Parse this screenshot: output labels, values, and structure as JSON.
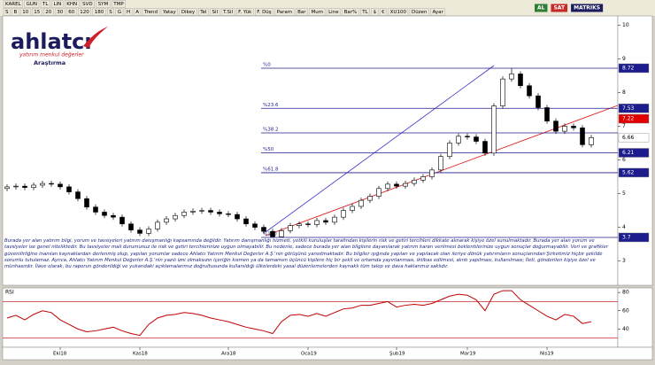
{
  "toolbar": {
    "row1": [
      "KAREL",
      "GUN",
      "TL",
      "LIN",
      "KHN",
      "SVD",
      "SYM",
      "TMP"
    ],
    "row2": [
      "S",
      "B",
      "10",
      "15",
      "20",
      "30",
      "60",
      "120",
      "180",
      "S",
      "G",
      "H",
      "A",
      "Trend",
      "Yatay",
      "Dikey",
      "Tel",
      "Sil",
      "T.Sil",
      "F. Yük",
      "F. Düş",
      "Param",
      "Bar",
      "Mum",
      "Line",
      "Bar%",
      "TL",
      "$",
      "€",
      "XU100",
      "Düzen",
      "Ayar"
    ],
    "right": [
      "AL",
      "SAT",
      "MATRIKS"
    ]
  },
  "logo": {
    "name": "ahlatcı",
    "tagline": "yatırım menkul değerler",
    "subtitle": "Araştırma"
  },
  "disclaimer": "Burada yer alan yatırım bilgi, yorum ve tavsiyeleri yatırım danışmanlığı kapsamında değildir. Yatırım danışmanlığı hizmeti, yetkili kuruluşlar tarafından kişilerin risk ve getiri tercihleri dikkate alınarak kişiye özel sunulmaktadır. Burada yer alan yorum ve tavsiyeler ise genel niteliktedir. Bu tavsiyeler mali durumunuz ile risk ve getiri tercihlerinize uygun olmayabilir. Bu nedenle, sadece burada yer alan bilgilere dayanılarak yatırım kararı verilmesi beklentilerinize uygun sonuçlar doğurmayabilir. Veri ve grafikler güvenilirliğine inanılan kaynaklardan derlenmiş olup, yapılan yorumlar sadece Ahlatcı Yatırım Menkul Değerler A.Ş.'nin görüşünü yansıtmaktadır. Bu bilgiler ışığında yapılan ve yapılacak olan ileriye dönük yatırımların sonuçlarından Şirketimiz hiçbir şekilde sorumlu tutulamaz. Ayrıca, Ahlatcı Yatırım Menkul Değerler A.Ş.'nin yazılı izni olmaksızın içeriğin kısmen ya da tamamen üçüncü kişilere hiç bir şekil ve ortamda yayınlanması, iktibas edilmesi, alıntı yapılması, kullanılması; İleti, gönderilen kişiye özel ve münhasırdır. İlave olarak, bu raporun gönderildiği ve yukarıdaki açıklamalarımız doğrultusunda kullanıldığı ülkelerdeki yasal düzenlemelerden kaynaklı tüm talep ve dava haklarımız saklıdır.",
  "chart_data": [
    {
      "type": "candlestick",
      "categories": [
        null,
        null,
        null,
        null,
        null,
        null,
        "Eki18",
        null,
        null,
        null,
        null,
        null,
        null,
        null,
        null,
        "Kas18",
        null,
        null,
        null,
        null,
        null,
        null,
        null,
        null,
        null,
        "Ara18",
        null,
        null,
        null,
        null,
        null,
        null,
        null,
        null,
        "Oca19",
        null,
        null,
        null,
        null,
        null,
        null,
        null,
        null,
        null,
        "Şub19",
        null,
        null,
        null,
        null,
        null,
        null,
        null,
        "Mar19",
        null,
        null,
        null,
        null,
        null,
        null,
        null,
        null,
        "Nis19",
        null,
        null,
        null,
        null,
        null
      ],
      "open": [
        5.15,
        5.2,
        5.22,
        5.18,
        5.25,
        5.3,
        5.28,
        5.2,
        5.05,
        4.85,
        4.6,
        4.45,
        4.35,
        4.3,
        4.1,
        3.92,
        3.82,
        3.95,
        4.15,
        4.25,
        4.35,
        4.45,
        4.48,
        4.5,
        4.45,
        4.4,
        4.38,
        4.25,
        4.1,
        4.0,
        3.88,
        3.72,
        3.9,
        4.05,
        4.1,
        4.08,
        4.2,
        4.15,
        4.3,
        4.5,
        4.62,
        4.8,
        4.92,
        5.15,
        5.28,
        5.22,
        5.3,
        5.4,
        5.5,
        5.7,
        6.1,
        6.5,
        6.7,
        6.68,
        6.55,
        6.2,
        7.6,
        8.4,
        8.55,
        8.2,
        7.9,
        7.55,
        7.15,
        6.85,
        7.0,
        6.95,
        6.45
      ],
      "high": [
        5.28,
        5.3,
        5.3,
        5.33,
        5.38,
        5.38,
        5.36,
        5.28,
        5.13,
        4.93,
        4.68,
        4.53,
        4.43,
        4.38,
        4.18,
        4.0,
        4.03,
        4.23,
        4.33,
        4.43,
        4.53,
        4.56,
        4.58,
        4.58,
        4.53,
        4.48,
        4.46,
        4.33,
        4.18,
        4.08,
        3.96,
        3.98,
        4.13,
        4.18,
        4.18,
        4.28,
        4.28,
        4.38,
        4.58,
        4.7,
        4.88,
        5.0,
        5.23,
        5.36,
        5.36,
        5.38,
        5.48,
        5.58,
        5.78,
        6.18,
        6.58,
        6.78,
        6.78,
        6.76,
        6.63,
        7.68,
        8.48,
        8.72,
        8.63,
        8.28,
        7.98,
        7.63,
        7.23,
        7.08,
        7.08,
        7.03,
        6.74
      ],
      "low": [
        5.07,
        5.12,
        5.1,
        5.1,
        5.17,
        5.2,
        5.12,
        4.97,
        4.77,
        4.52,
        4.37,
        4.27,
        4.22,
        4.02,
        3.84,
        3.74,
        3.74,
        3.87,
        4.07,
        4.17,
        4.27,
        4.37,
        4.4,
        4.37,
        4.32,
        4.3,
        4.17,
        4.02,
        3.92,
        3.8,
        3.7,
        3.74,
        3.82,
        3.97,
        4.0,
        4.0,
        4.07,
        4.07,
        4.22,
        4.42,
        4.54,
        4.72,
        4.84,
        5.07,
        5.14,
        5.14,
        5.22,
        5.32,
        5.42,
        5.62,
        6.02,
        6.42,
        6.6,
        6.47,
        6.12,
        6.12,
        7.52,
        8.32,
        8.12,
        7.82,
        7.47,
        7.07,
        6.77,
        6.77,
        6.87,
        6.37,
        6.37
      ],
      "close": [
        5.2,
        5.22,
        5.18,
        5.25,
        5.3,
        5.28,
        5.2,
        5.05,
        4.85,
        4.6,
        4.45,
        4.35,
        4.3,
        4.1,
        3.92,
        3.82,
        3.95,
        4.15,
        4.25,
        4.35,
        4.45,
        4.48,
        4.5,
        4.45,
        4.4,
        4.38,
        4.25,
        4.1,
        4.0,
        3.88,
        3.72,
        3.9,
        4.05,
        4.1,
        4.08,
        4.2,
        4.15,
        4.3,
        4.5,
        4.62,
        4.8,
        4.92,
        5.15,
        5.28,
        5.22,
        5.3,
        5.4,
        5.5,
        5.7,
        6.1,
        6.5,
        6.7,
        6.68,
        6.55,
        6.2,
        7.6,
        8.4,
        8.55,
        8.2,
        7.9,
        7.55,
        7.15,
        6.85,
        7.0,
        6.95,
        6.45,
        6.66
      ],
      "up_color": "#ffffff",
      "down_color": "#000000",
      "edge_color": "#000000",
      "ylim": [
        2.28,
        10.27
      ],
      "yticks": [
        3,
        4,
        5,
        6,
        7,
        8,
        9,
        10
      ],
      "fib_levels": [
        {
          "label": "%0",
          "value": 8.72
        },
        {
          "label": "%23.6",
          "value": 7.53
        },
        {
          "label": "%38.2",
          "value": 6.8
        },
        {
          "label": "%50",
          "value": 6.21
        },
        {
          "label": "%61.8",
          "value": 5.62
        },
        {
          "label": "%100",
          "value": 3.7
        }
      ],
      "fib_color": "#1c1c8c",
      "price_tags": [
        {
          "value": 8.72,
          "color": "#1c1c8c",
          "text_color": "#ffffff"
        },
        {
          "value": 7.53,
          "color": "#1c1c8c",
          "text_color": "#ffffff"
        },
        {
          "value": 7.22,
          "color": "#e00000",
          "text_color": "#ffffff"
        },
        {
          "value": 6.66,
          "color": "#ffffff",
          "text_color": "#000000"
        },
        {
          "value": 6.21,
          "color": "#1c1c8c",
          "text_color": "#ffffff"
        },
        {
          "value": 5.62,
          "color": "#1c1c8c",
          "text_color": "#ffffff"
        },
        {
          "value": 3.7,
          "color": "#1c1c8c",
          "text_color": "#ffffff"
        }
      ]
    },
    {
      "type": "line",
      "title": "RSI",
      "series": [
        {
          "color": "#c00000",
          "values": [
            52,
            55,
            50,
            56,
            60,
            58,
            50,
            45,
            40,
            37,
            38,
            40,
            42,
            38,
            35,
            33,
            45,
            52,
            55,
            56,
            58,
            57,
            55,
            52,
            50,
            48,
            45,
            42,
            40,
            38,
            35,
            48,
            55,
            56,
            54,
            57,
            54,
            58,
            62,
            63,
            66,
            66,
            68,
            70,
            64,
            66,
            67,
            66,
            68,
            72,
            76,
            78,
            77,
            72,
            60,
            78,
            82,
            82,
            72,
            66,
            60,
            54,
            50,
            56,
            54,
            46,
            48
          ]
        }
      ],
      "ylim": [
        20,
        84
      ],
      "yticks": [
        40,
        60,
        80
      ],
      "levels": [
        30,
        70
      ],
      "level_color": "#c00000"
    }
  ]
}
